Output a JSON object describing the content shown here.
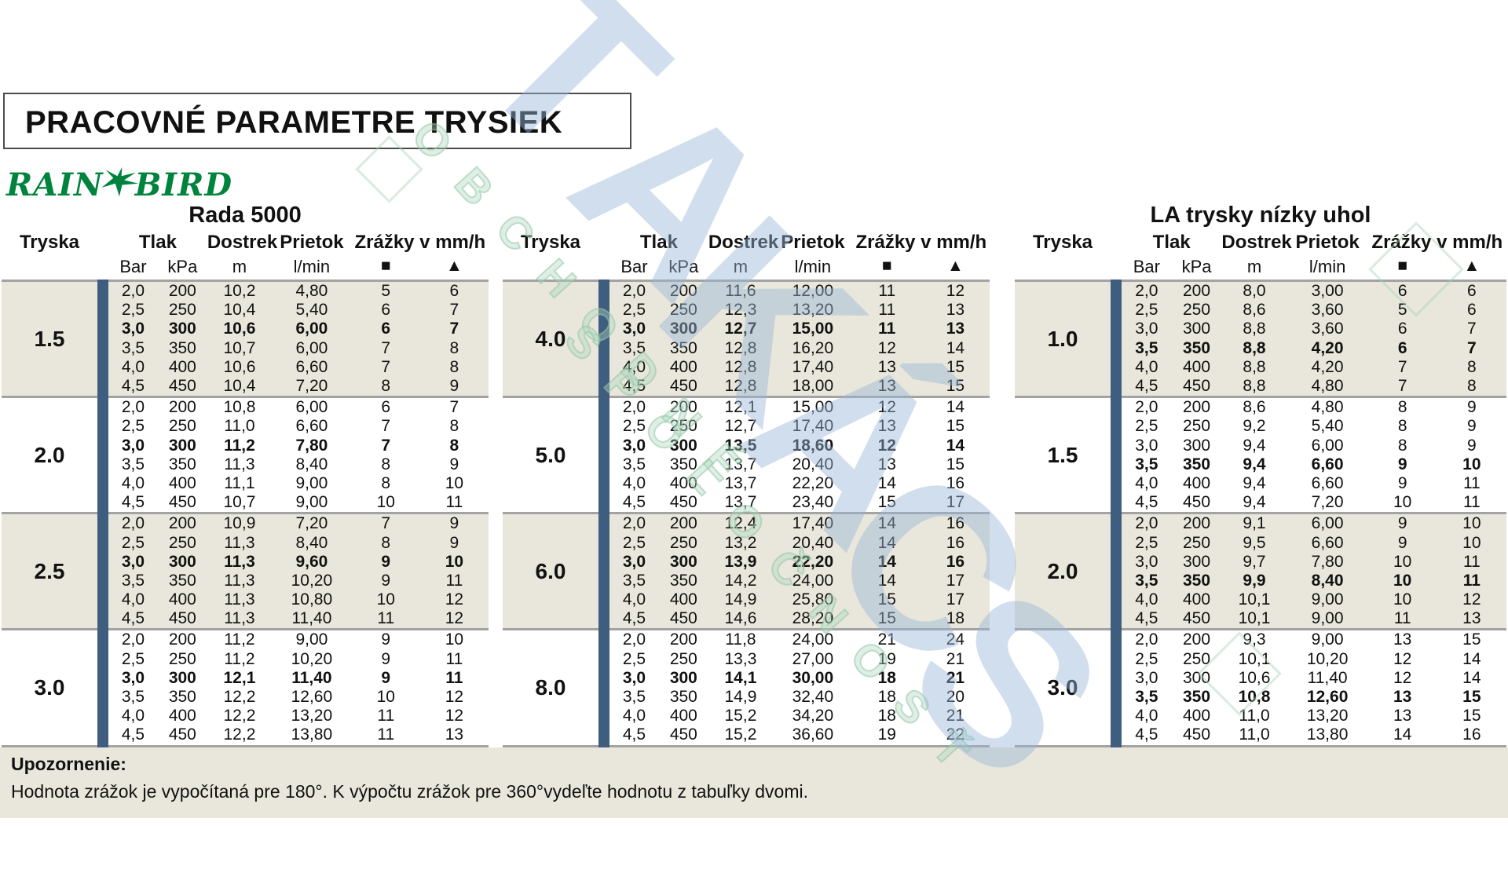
{
  "page": {
    "title": "PRACOVNÉ PARAMETRE TRYSIEK",
    "logo": {
      "word1": "RAIN",
      "word2": "BIRD"
    },
    "watermark": {
      "main": "TAKÁCS",
      "line1": "OBCHODNÉ",
      "line2": "SPOLOČNOSŤ"
    },
    "colors": {
      "accent_blue_bar": "#3f5d7e",
      "shaded_row": "#e9e7db",
      "brand_green": "#00843d",
      "separator_gray": "#a3a3a3",
      "watermark_blue": "#9ab5d6",
      "watermark_green": "#b0d6bd"
    }
  },
  "columns": {
    "tryska": "Tryska",
    "tlak": "Tlak",
    "dostrek": "Dostrek",
    "prietok": "Prietok",
    "zrazky": "Zrážky v mm/h",
    "bar": "Bar",
    "kpa": "kPa",
    "m": "m",
    "lmin": "l/min",
    "square": "■",
    "triangle": "▲"
  },
  "tables": [
    {
      "title": "Rada 5000",
      "bold_row_index": 2,
      "groups": [
        {
          "nozzle": "1.5",
          "shaded": true,
          "rows": [
            [
              "2,0",
              "200",
              "10,2",
              "4,80",
              "5",
              "6"
            ],
            [
              "2,5",
              "250",
              "10,4",
              "5,40",
              "6",
              "7"
            ],
            [
              "3,0",
              "300",
              "10,6",
              "6,00",
              "6",
              "7"
            ],
            [
              "3,5",
              "350",
              "10,7",
              "6,00",
              "7",
              "8"
            ],
            [
              "4,0",
              "400",
              "10,6",
              "6,60",
              "7",
              "8"
            ],
            [
              "4,5",
              "450",
              "10,4",
              "7,20",
              "8",
              "9"
            ]
          ]
        },
        {
          "nozzle": "2.0",
          "shaded": false,
          "rows": [
            [
              "2,0",
              "200",
              "10,8",
              "6,00",
              "6",
              "7"
            ],
            [
              "2,5",
              "250",
              "11,0",
              "6,60",
              "7",
              "8"
            ],
            [
              "3,0",
              "300",
              "11,2",
              "7,80",
              "7",
              "8"
            ],
            [
              "3,5",
              "350",
              "11,3",
              "8,40",
              "8",
              "9"
            ],
            [
              "4,0",
              "400",
              "11,1",
              "9,00",
              "8",
              "10"
            ],
            [
              "4,5",
              "450",
              "10,7",
              "9,00",
              "10",
              "11"
            ]
          ]
        },
        {
          "nozzle": "2.5",
          "shaded": true,
          "rows": [
            [
              "2,0",
              "200",
              "10,9",
              "7,20",
              "7",
              "9"
            ],
            [
              "2,5",
              "250",
              "11,3",
              "8,40",
              "8",
              "9"
            ],
            [
              "3,0",
              "300",
              "11,3",
              "9,60",
              "9",
              "10"
            ],
            [
              "3,5",
              "350",
              "11,3",
              "10,20",
              "9",
              "11"
            ],
            [
              "4,0",
              "400",
              "11,3",
              "10,80",
              "10",
              "12"
            ],
            [
              "4,5",
              "450",
              "11,3",
              "11,40",
              "11",
              "12"
            ]
          ]
        },
        {
          "nozzle": "3.0",
          "shaded": false,
          "rows": [
            [
              "2,0",
              "200",
              "11,2",
              "9,00",
              "9",
              "10"
            ],
            [
              "2,5",
              "250",
              "11,2",
              "10,20",
              "9",
              "11"
            ],
            [
              "3,0",
              "300",
              "12,1",
              "11,40",
              "9",
              "11"
            ],
            [
              "3,5",
              "350",
              "12,2",
              "12,60",
              "10",
              "12"
            ],
            [
              "4,0",
              "400",
              "12,2",
              "13,20",
              "11",
              "12"
            ],
            [
              "4,5",
              "450",
              "12,2",
              "13,80",
              "11",
              "13"
            ]
          ]
        }
      ]
    },
    {
      "title": "",
      "bold_row_index": 2,
      "groups": [
        {
          "nozzle": "4.0",
          "shaded": true,
          "rows": [
            [
              "2,0",
              "200",
              "11,6",
              "12,00",
              "11",
              "12"
            ],
            [
              "2,5",
              "250",
              "12,3",
              "13,20",
              "11",
              "13"
            ],
            [
              "3,0",
              "300",
              "12,7",
              "15,00",
              "11",
              "13"
            ],
            [
              "3,5",
              "350",
              "12,8",
              "16,20",
              "12",
              "14"
            ],
            [
              "4,0",
              "400",
              "12,8",
              "17,40",
              "13",
              "15"
            ],
            [
              "4,5",
              "450",
              "12,8",
              "18,00",
              "13",
              "15"
            ]
          ]
        },
        {
          "nozzle": "5.0",
          "shaded": false,
          "rows": [
            [
              "2,0",
              "200",
              "12,1",
              "15,00",
              "12",
              "14"
            ],
            [
              "2,5",
              "250",
              "12,7",
              "17,40",
              "13",
              "15"
            ],
            [
              "3,0",
              "300",
              "13,5",
              "18,60",
              "12",
              "14"
            ],
            [
              "3,5",
              "350",
              "13,7",
              "20,40",
              "13",
              "15"
            ],
            [
              "4,0",
              "400",
              "13,7",
              "22,20",
              "14",
              "16"
            ],
            [
              "4,5",
              "450",
              "13,7",
              "23,40",
              "15",
              "17"
            ]
          ]
        },
        {
          "nozzle": "6.0",
          "shaded": true,
          "rows": [
            [
              "2,0",
              "200",
              "12,4",
              "17,40",
              "14",
              "16"
            ],
            [
              "2,5",
              "250",
              "13,2",
              "20,40",
              "14",
              "16"
            ],
            [
              "3,0",
              "300",
              "13,9",
              "22,20",
              "14",
              "16"
            ],
            [
              "3,5",
              "350",
              "14,2",
              "24,00",
              "14",
              "17"
            ],
            [
              "4,0",
              "400",
              "14,9",
              "25,80",
              "15",
              "17"
            ],
            [
              "4,5",
              "450",
              "14,6",
              "28,20",
              "15",
              "18"
            ]
          ]
        },
        {
          "nozzle": "8.0",
          "shaded": false,
          "rows": [
            [
              "2,0",
              "200",
              "11,8",
              "24,00",
              "21",
              "24"
            ],
            [
              "2,5",
              "250",
              "13,3",
              "27,00",
              "19",
              "21"
            ],
            [
              "3,0",
              "300",
              "14,1",
              "30,00",
              "18",
              "21"
            ],
            [
              "3,5",
              "350",
              "14,9",
              "32,40",
              "18",
              "20"
            ],
            [
              "4,0",
              "400",
              "15,2",
              "34,20",
              "18",
              "21"
            ],
            [
              "4,5",
              "450",
              "15,2",
              "36,60",
              "19",
              "22"
            ]
          ]
        }
      ]
    },
    {
      "title": "LA trysky nízky uhol",
      "bold_row_index": 3,
      "groups": [
        {
          "nozzle": "1.0",
          "shaded": true,
          "rows": [
            [
              "2,0",
              "200",
              "8,0",
              "3,00",
              "6",
              "6"
            ],
            [
              "2,5",
              "250",
              "8,6",
              "3,60",
              "5",
              "6"
            ],
            [
              "3,0",
              "300",
              "8,8",
              "3,60",
              "6",
              "7"
            ],
            [
              "3,5",
              "350",
              "8,8",
              "4,20",
              "6",
              "7"
            ],
            [
              "4,0",
              "400",
              "8,8",
              "4,20",
              "7",
              "8"
            ],
            [
              "4,5",
              "450",
              "8,8",
              "4,80",
              "7",
              "8"
            ]
          ]
        },
        {
          "nozzle": "1.5",
          "shaded": false,
          "rows": [
            [
              "2,0",
              "200",
              "8,6",
              "4,80",
              "8",
              "9"
            ],
            [
              "2,5",
              "250",
              "9,2",
              "5,40",
              "8",
              "9"
            ],
            [
              "3,0",
              "300",
              "9,4",
              "6,00",
              "8",
              "9"
            ],
            [
              "3,5",
              "350",
              "9,4",
              "6,60",
              "9",
              "10"
            ],
            [
              "4,0",
              "400",
              "9,4",
              "6,60",
              "9",
              "11"
            ],
            [
              "4,5",
              "450",
              "9,4",
              "7,20",
              "10",
              "11"
            ]
          ]
        },
        {
          "nozzle": "2.0",
          "shaded": true,
          "rows": [
            [
              "2,0",
              "200",
              "9,1",
              "6,00",
              "9",
              "10"
            ],
            [
              "2,5",
              "250",
              "9,5",
              "6,60",
              "9",
              "10"
            ],
            [
              "3,0",
              "300",
              "9,7",
              "7,80",
              "10",
              "11"
            ],
            [
              "3,5",
              "350",
              "9,9",
              "8,40",
              "10",
              "11"
            ],
            [
              "4,0",
              "400",
              "10,1",
              "9,00",
              "10",
              "12"
            ],
            [
              "4,5",
              "450",
              "10,1",
              "9,00",
              "11",
              "13"
            ]
          ]
        },
        {
          "nozzle": "3.0",
          "shaded": false,
          "rows": [
            [
              "2,0",
              "200",
              "9,3",
              "9,00",
              "13",
              "15"
            ],
            [
              "2,5",
              "250",
              "10,1",
              "10,20",
              "12",
              "14"
            ],
            [
              "3,0",
              "300",
              "10,6",
              "11,40",
              "12",
              "14"
            ],
            [
              "3,5",
              "350",
              "10,8",
              "12,60",
              "13",
              "15"
            ],
            [
              "4,0",
              "400",
              "11,0",
              "13,20",
              "13",
              "15"
            ],
            [
              "4,5",
              "450",
              "11,0",
              "13,80",
              "14",
              "16"
            ]
          ]
        }
      ]
    }
  ],
  "note": {
    "label": "Upozornenie:",
    "text": "Hodnota zrážok je vypočítaná pre 180°. K výpočtu zrážok pre 360°vydeľte hodnotu z tabuľky dvomi."
  }
}
